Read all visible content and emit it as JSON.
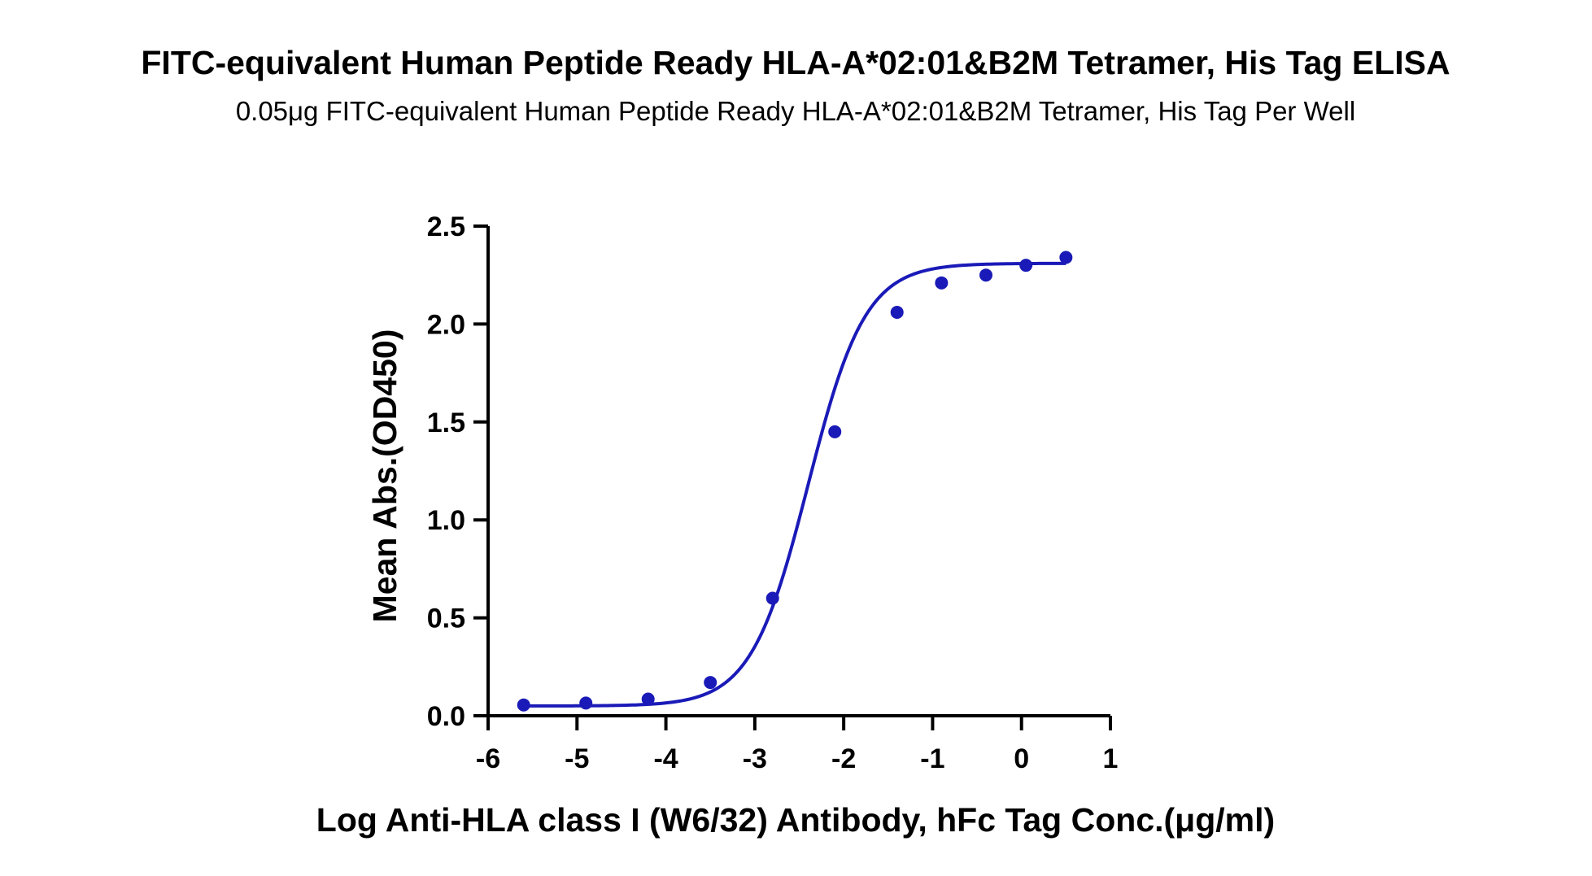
{
  "chart_data": {
    "type": "scatter",
    "title": "FITC-equivalent Human Peptide Ready HLA-A*02:01&B2M Tetramer, His Tag ELISA",
    "subtitle": "0.05μg FITC-equivalent Human Peptide Ready HLA-A*02:01&B2M Tetramer, His Tag Per Well",
    "xlabel": "Log Anti-HLA class I (W6/32) Antibody, hFc Tag Conc.(μg/ml)",
    "ylabel": "Mean Abs.(OD450)",
    "xlim": [
      -6,
      1
    ],
    "ylim": [
      0,
      2.5
    ],
    "x_ticks": [
      "-6",
      "-5",
      "-4",
      "-3",
      "-2",
      "-1",
      "0",
      "1"
    ],
    "y_ticks": [
      "0.0",
      "0.5",
      "1.0",
      "1.5",
      "2.0",
      "2.5"
    ],
    "grid": false,
    "legend": "none",
    "series_color": "#1a1ab8",
    "points": [
      {
        "x": -5.6,
        "y": 0.055
      },
      {
        "x": -4.9,
        "y": 0.065
      },
      {
        "x": -4.2,
        "y": 0.085
      },
      {
        "x": -3.5,
        "y": 0.17
      },
      {
        "x": -2.8,
        "y": 0.6
      },
      {
        "x": -2.1,
        "y": 1.45
      },
      {
        "x": -1.4,
        "y": 2.06
      },
      {
        "x": -0.9,
        "y": 2.21
      },
      {
        "x": -0.4,
        "y": 2.25
      },
      {
        "x": 0.05,
        "y": 2.3
      },
      {
        "x": 0.5,
        "y": 2.34
      }
    ],
    "fit_curve": {
      "model": "4PL",
      "bottom": 0.05,
      "top": 2.31,
      "log_ec50": -2.4,
      "hill_slope": 1.35
    }
  }
}
